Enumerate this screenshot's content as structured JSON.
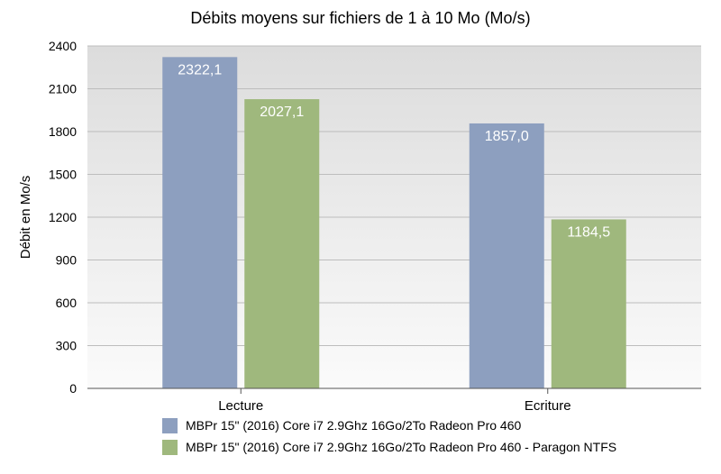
{
  "chart_data": {
    "type": "bar",
    "title": "Débits moyens sur fichiers de 1 à 10 Mo (Mo/s)",
    "ylabel": "Débit en Mo/s",
    "xlabel": "",
    "categories": [
      "Lecture",
      "Ecriture"
    ],
    "ylim": [
      0,
      2400
    ],
    "yticks": [
      0,
      300,
      600,
      900,
      1200,
      1500,
      1800,
      2100,
      2400
    ],
    "grid": true,
    "legend_position": "bottom",
    "series": [
      {
        "name": "MBPr 15\" (2016) Core i7 2.9Ghz 16Go/2To Radeon Pro 460",
        "color": "#8d9fbf",
        "values": [
          2322.1,
          1857.0
        ],
        "labels": [
          "2322,1",
          "1857,0"
        ]
      },
      {
        "name": "MBPr 15\" (2016) Core i7 2.9Ghz 16Go/2To Radeon Pro 460 - Paragon NTFS",
        "color": "#9fb87d",
        "values": [
          2027.1,
          1184.5
        ],
        "labels": [
          "2027,1",
          "1184,5"
        ]
      }
    ]
  }
}
